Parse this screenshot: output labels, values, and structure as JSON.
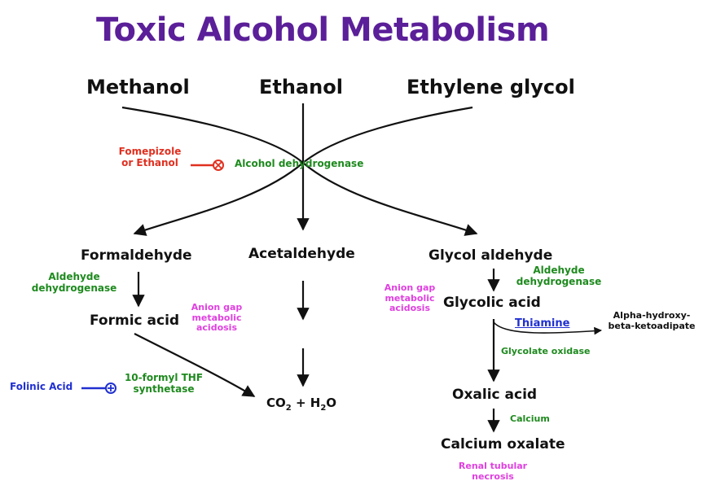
{
  "title": "Toxic Alcohol Metabolism",
  "sources": {
    "methanol": "Methanol",
    "ethanol": "Ethanol",
    "ethylene_glycol": "Ethylene glycol"
  },
  "inhibitor": {
    "line1": "Fomepizole",
    "line2": "or Ethanol"
  },
  "adh": "Alcohol dehydrogenase",
  "methanol_path": {
    "formaldehyde": "Formaldehyde",
    "aldh_1": "Aldehyde",
    "aldh_2": "dehydrogenase",
    "formic_acid": "Formic acid",
    "anion_1": "Anion gap",
    "anion_2": "metabolic",
    "anion_3": "acidosis",
    "folinic_acid": "Folinic Acid",
    "enzyme_1": "10-formyl THF",
    "enzyme_2": "synthetase"
  },
  "ethanol_path": {
    "acetaldehyde": "Acetaldehyde",
    "co2": "CO",
    "co2_sub": "2",
    "plus": " + H",
    "h2o_sub": "2",
    "h2o_end": "O"
  },
  "glycol_path": {
    "glycol_aldehyde": "Glycol aldehyde",
    "aldh_1": "Aldehyde",
    "aldh_2": "dehydrogenase",
    "anion_1": "Anion gap",
    "anion_2": "metabolic",
    "anion_3": "acidosis",
    "glycolic_acid": "Glycolic acid",
    "thiamine": "Thiamine",
    "ahk_1": "Alpha-hydroxy-",
    "ahk_2": "beta-ketoadipate",
    "glycolate_oxidase": "Glycolate oxidase",
    "oxalic_acid": "Oxalic acid",
    "calcium": "Calcium",
    "calcium_oxalate": "Calcium oxalate",
    "renal_1": "Renal tubular",
    "renal_2": "necrosis"
  },
  "colors": {
    "title": "#5b1f99",
    "enzyme": "#1e8a1e",
    "inhibitor": "#e03020",
    "anion": "#e040e0",
    "cofactor": "#2030d0",
    "line": "#111111"
  }
}
